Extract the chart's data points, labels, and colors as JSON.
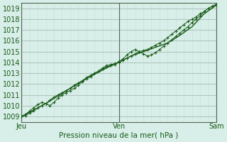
{
  "title": "",
  "xlabel": "Pression niveau de la mer( hPa )",
  "ylabel": "",
  "bg_color": "#d8eee8",
  "plot_bg_color": "#d8eee8",
  "grid_color_major": "#b0c8c0",
  "grid_color_minor": "#c8ddd8",
  "line_color": "#1a5c1a",
  "marker_color": "#1a5c1a",
  "ylim": [
    1008.5,
    1019.5
  ],
  "xlim": [
    0,
    48
  ],
  "yticks": [
    1009,
    1010,
    1011,
    1012,
    1013,
    1014,
    1015,
    1016,
    1017,
    1018,
    1019
  ],
  "xtick_positions": [
    0,
    24,
    48
  ],
  "xtick_labels": [
    "Jeu",
    "Ven",
    "Sam"
  ],
  "vline_positions": [
    0,
    24,
    48
  ],
  "series1_x": [
    0,
    1,
    2,
    3,
    4,
    5,
    6,
    7,
    8,
    9,
    10,
    11,
    12,
    13,
    14,
    15,
    16,
    17,
    18,
    19,
    20,
    21,
    22,
    23,
    24,
    25,
    26,
    27,
    28,
    29,
    30,
    31,
    32,
    33,
    34,
    35,
    36,
    37,
    38,
    39,
    40,
    41,
    42,
    43,
    44,
    45,
    46,
    47,
    48
  ],
  "series1_y": [
    1009.0,
    1009.1,
    1009.3,
    1009.5,
    1009.8,
    1010.0,
    1010.2,
    1010.5,
    1010.8,
    1011.0,
    1011.2,
    1011.4,
    1011.6,
    1011.9,
    1012.1,
    1012.3,
    1012.6,
    1012.8,
    1013.0,
    1013.2,
    1013.5,
    1013.7,
    1013.8,
    1013.9,
    1014.0,
    1014.2,
    1014.4,
    1014.6,
    1014.8,
    1015.0,
    1015.1,
    1015.2,
    1015.4,
    1015.6,
    1015.8,
    1016.0,
    1016.3,
    1016.6,
    1016.9,
    1017.2,
    1017.5,
    1017.8,
    1018.0,
    1018.2,
    1018.5,
    1018.7,
    1019.0,
    1019.2,
    1019.3
  ],
  "series2_x": [
    0,
    1,
    2,
    3,
    4,
    5,
    6,
    7,
    8,
    9,
    10,
    11,
    12,
    13,
    14,
    15,
    16,
    17,
    18,
    19,
    20,
    21,
    22,
    23,
    24,
    25,
    26,
    27,
    28,
    29,
    30,
    31,
    32,
    33,
    34,
    35,
    36,
    37,
    38,
    39,
    40,
    41,
    42,
    43,
    44,
    45,
    46,
    47,
    48
  ],
  "series2_y": [
    1009.0,
    1009.2,
    1009.5,
    1009.8,
    1010.1,
    1010.3,
    1010.2,
    1010.0,
    1010.3,
    1010.7,
    1011.0,
    1011.2,
    1011.4,
    1011.6,
    1011.9,
    1012.2,
    1012.5,
    1012.7,
    1013.0,
    1013.2,
    1013.4,
    1013.6,
    1013.7,
    1013.8,
    1014.1,
    1014.3,
    1014.7,
    1015.0,
    1015.2,
    1015.0,
    1014.8,
    1014.6,
    1014.7,
    1014.9,
    1015.2,
    1015.5,
    1015.8,
    1016.1,
    1016.4,
    1016.7,
    1017.0,
    1017.3,
    1017.7,
    1018.0,
    1018.3,
    1018.7,
    1019.0,
    1019.2,
    1019.4
  ],
  "series3_x": [
    0,
    3,
    6,
    9,
    12,
    15,
    18,
    21,
    24,
    27,
    30,
    33,
    36,
    39,
    42,
    45,
    48
  ],
  "series3_y": [
    1009.0,
    1009.6,
    1010.2,
    1010.9,
    1011.6,
    1012.3,
    1012.9,
    1013.5,
    1014.0,
    1014.6,
    1015.0,
    1015.4,
    1015.8,
    1016.5,
    1017.3,
    1018.5,
    1019.3
  ]
}
